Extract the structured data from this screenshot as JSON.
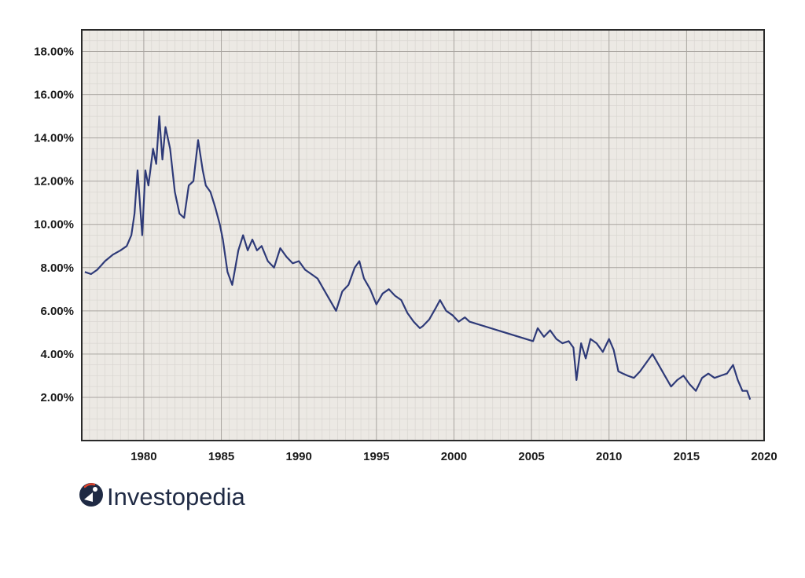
{
  "chart_data": {
    "type": "line",
    "title": "",
    "xlabel": "",
    "ylabel": "",
    "xlim": [
      1976,
      2020
    ],
    "ylim": [
      0,
      19
    ],
    "x_ticks": [
      1980,
      1985,
      1990,
      1995,
      2000,
      2005,
      2010,
      2015,
      2020
    ],
    "y_ticks": [
      2,
      4,
      6,
      8,
      10,
      12,
      14,
      16,
      18
    ],
    "y_tick_labels": [
      "2.00%",
      "4.00%",
      "6.00%",
      "8.00%",
      "10.00%",
      "12.00%",
      "14.00%",
      "16.00%",
      "18.00%"
    ],
    "grid": true,
    "line_color": "#2e3a78",
    "plot_background": "#ece9e4",
    "series": [
      {
        "x": [
          1976.2,
          1976.6,
          1977.0,
          1977.5,
          1978.0,
          1978.5,
          1978.9,
          1979.2,
          1979.4,
          1979.6,
          1979.9,
          1980.1,
          1980.3,
          1980.6,
          1980.8,
          1981.0,
          1981.2,
          1981.4,
          1981.7,
          1982.0,
          1982.3,
          1982.6,
          1982.9,
          1983.2,
          1983.5,
          1983.8,
          1984.0,
          1984.3,
          1984.6,
          1984.9,
          1985.1,
          1985.4,
          1985.7,
          1986.1,
          1986.4,
          1986.7,
          1987.0,
          1987.3,
          1987.6,
          1988.0,
          1988.4,
          1988.8,
          1989.2,
          1989.6,
          1990.0,
          1990.4,
          1990.8,
          1991.2,
          1991.6,
          1992.0,
          1992.4,
          1992.8,
          1993.2,
          1993.6,
          1993.9,
          1994.2,
          1994.6,
          1995.0,
          1995.4,
          1995.8,
          1996.2,
          1996.6,
          1997.0,
          1997.4,
          1997.8,
          1998.0,
          1998.4,
          1998.8,
          1999.1,
          1999.5,
          1999.9,
          2000.3,
          2000.7,
          2001.0,
          2005.1,
          2005.4,
          2005.8,
          2006.2,
          2006.6,
          2007.0,
          2007.4,
          2007.7,
          2007.9,
          2008.2,
          2008.5,
          2008.8,
          2009.2,
          2009.6,
          2010.0,
          2010.3,
          2010.6,
          2010.9,
          2011.2,
          2011.6,
          2012.0,
          2012.4,
          2012.8,
          2013.2,
          2013.6,
          2014.0,
          2014.4,
          2014.8,
          2015.2,
          2015.6,
          2016.0,
          2016.4,
          2016.8,
          2017.2,
          2017.6,
          2018.0,
          2018.3,
          2018.6,
          2018.9,
          2019.1
        ],
        "y": [
          7.8,
          7.7,
          7.9,
          8.3,
          8.6,
          8.8,
          9.0,
          9.5,
          10.5,
          12.5,
          9.5,
          12.5,
          11.8,
          13.5,
          12.8,
          15.0,
          13.0,
          14.5,
          13.5,
          11.5,
          10.5,
          10.3,
          11.8,
          12.0,
          13.9,
          12.5,
          11.8,
          11.5,
          10.8,
          10.0,
          9.3,
          7.8,
          7.2,
          8.8,
          9.5,
          8.8,
          9.3,
          8.8,
          9.0,
          8.3,
          8.0,
          8.9,
          8.5,
          8.2,
          8.3,
          7.9,
          7.7,
          7.5,
          7.0,
          6.5,
          6.0,
          6.9,
          7.2,
          8.0,
          8.3,
          7.5,
          7.0,
          6.3,
          6.8,
          7.0,
          6.7,
          6.5,
          5.9,
          5.5,
          5.2,
          5.3,
          5.6,
          6.1,
          6.5,
          6.0,
          5.8,
          5.5,
          5.7,
          5.5,
          4.6,
          5.2,
          4.8,
          5.1,
          4.7,
          4.5,
          4.6,
          4.3,
          2.8,
          4.5,
          3.8,
          4.7,
          4.5,
          4.1,
          4.7,
          4.2,
          3.2,
          3.1,
          3.0,
          2.9,
          3.2,
          3.6,
          4.0,
          3.5,
          3.0,
          2.5,
          2.8,
          3.0,
          2.6,
          2.3,
          2.9,
          3.1,
          2.9,
          3.0,
          3.1,
          3.5,
          2.8,
          2.3,
          2.3,
          1.9
        ]
      }
    ]
  },
  "logo": {
    "text": "Investopedia",
    "icon": "investopedia-logo-icon",
    "color": "#1f2a44"
  }
}
